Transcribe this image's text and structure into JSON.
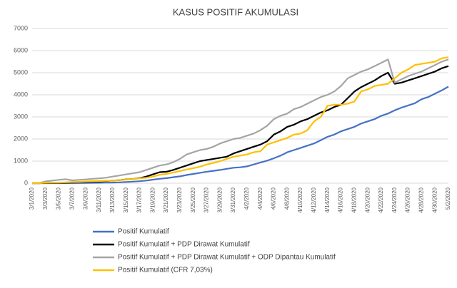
{
  "chart_data": {
    "type": "line",
    "title": "KASUS POSITIF AKUMULASI",
    "categories": [
      "3/1/2020",
      null,
      "3/3/2020",
      null,
      "3/5/2020",
      null,
      "3/7/2020",
      null,
      "3/9/2020",
      null,
      "3/11/2020",
      null,
      "3/13/2020",
      null,
      "3/15/2020",
      null,
      "3/17/2020",
      null,
      "3/19/2020",
      null,
      "3/21/2020",
      null,
      "3/23/2020",
      null,
      "3/25/2020",
      null,
      "3/27/2020",
      null,
      "3/29/2020",
      null,
      "3/31/2020",
      null,
      "4/2/2020",
      null,
      "4/4/2020",
      null,
      "4/6/2020",
      null,
      "4/8/2020",
      null,
      "4/10/2020",
      null,
      "4/12/2020",
      null,
      "4/14/2020",
      null,
      "4/16/2020",
      null,
      "4/18/2020",
      null,
      "4/20/2020",
      null,
      "4/22/2020",
      null,
      "4/24/2020",
      null,
      "4/26/2020",
      null,
      "4/28/2020",
      null,
      "4/30/2020",
      null,
      "5/2/2020"
    ],
    "series": [
      {
        "name": "Positif Kumulatif",
        "color": "#4472c4",
        "values": [
          0,
          0,
          0,
          0,
          0,
          2,
          3,
          5,
          10,
          15,
          20,
          25,
          30,
          40,
          55,
          70,
          90,
          120,
          160,
          200,
          230,
          270,
          310,
          370,
          420,
          470,
          520,
          560,
          600,
          650,
          700,
          720,
          760,
          850,
          940,
          1020,
          1130,
          1250,
          1400,
          1500,
          1600,
          1700,
          1800,
          1950,
          2100,
          2200,
          2350,
          2450,
          2550,
          2700,
          2800,
          2900,
          3050,
          3150,
          3300,
          3420,
          3520,
          3620,
          3800,
          3900,
          4050,
          4200,
          4370
        ]
      },
      {
        "name": "Positif Kumulatif + PDP Dirawat Kumulatif",
        "color": "#000000",
        "values": [
          0,
          0,
          10,
          20,
          20,
          30,
          35,
          50,
          60,
          70,
          80,
          100,
          120,
          140,
          170,
          190,
          230,
          300,
          400,
          500,
          520,
          600,
          700,
          800,
          900,
          1000,
          1050,
          1100,
          1150,
          1200,
          1350,
          1450,
          1550,
          1650,
          1750,
          1900,
          2200,
          2350,
          2550,
          2650,
          2800,
          2900,
          3050,
          3200,
          3300,
          3450,
          3550,
          3850,
          4150,
          4350,
          4500,
          4650,
          4850,
          5000,
          4500,
          4550,
          4650,
          4750,
          4850,
          4950,
          5050,
          5200,
          5300
        ]
      },
      {
        "name": "Positif Kumulatif + PDP Dirawat Kumulatif + ODP Dipantau Kumulatif",
        "color": "#a5a5a5",
        "values": [
          0,
          0,
          80,
          120,
          150,
          180,
          130,
          150,
          170,
          200,
          220,
          250,
          300,
          350,
          400,
          450,
          500,
          600,
          700,
          800,
          850,
          950,
          1100,
          1300,
          1400,
          1500,
          1550,
          1650,
          1800,
          1900,
          2000,
          2050,
          2150,
          2250,
          2400,
          2600,
          2900,
          3050,
          3150,
          3350,
          3450,
          3600,
          3750,
          3900,
          4000,
          4150,
          4400,
          4750,
          4900,
          5050,
          5150,
          5300,
          5450,
          5600,
          4550,
          4700,
          4850,
          4950,
          5050,
          5200,
          5350,
          5500,
          5600
        ]
      },
      {
        "name": "Positif Kumulatif (CFR 7,03%)",
        "color": "#ffc000",
        "values": [
          0,
          0,
          20,
          30,
          30,
          40,
          50,
          60,
          80,
          90,
          100,
          110,
          120,
          140,
          160,
          190,
          220,
          250,
          300,
          380,
          420,
          480,
          550,
          620,
          680,
          750,
          850,
          920,
          1000,
          1100,
          1200,
          1250,
          1300,
          1400,
          1450,
          1750,
          1850,
          1950,
          2050,
          2200,
          2250,
          2400,
          2800,
          3000,
          3500,
          3550,
          3550,
          3600,
          3700,
          4150,
          4250,
          4400,
          4450,
          4500,
          4750,
          5000,
          5150,
          5350,
          5400,
          5450,
          5500,
          5650,
          5700
        ]
      }
    ],
    "ylim": [
      0,
      7000
    ],
    "yticks": [
      0,
      1000,
      2000,
      3000,
      4000,
      5000,
      6000,
      7000
    ],
    "grid": true
  }
}
